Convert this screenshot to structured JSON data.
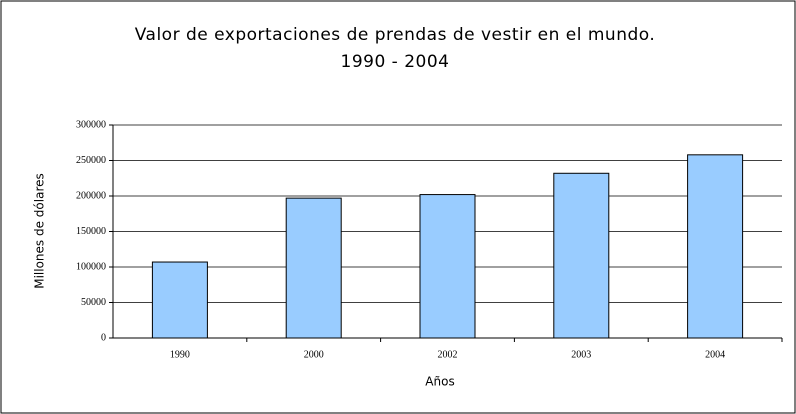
{
  "chart_data": {
    "type": "bar",
    "title": "Valor de exportaciones de prendas de vestir en el mundo.",
    "subtitle": "1990 - 2004",
    "x_label": "Años",
    "y_label": "Millones de dólares",
    "categories": [
      "1990",
      "2000",
      "2002",
      "2003",
      "2004"
    ],
    "values": [
      107000,
      197000,
      202000,
      232000,
      258000
    ],
    "color": "#99ccff",
    "ylim": [
      0,
      300000
    ],
    "yticks": [
      0,
      50000,
      100000,
      150000,
      200000,
      250000,
      300000
    ],
    "grid": true
  }
}
